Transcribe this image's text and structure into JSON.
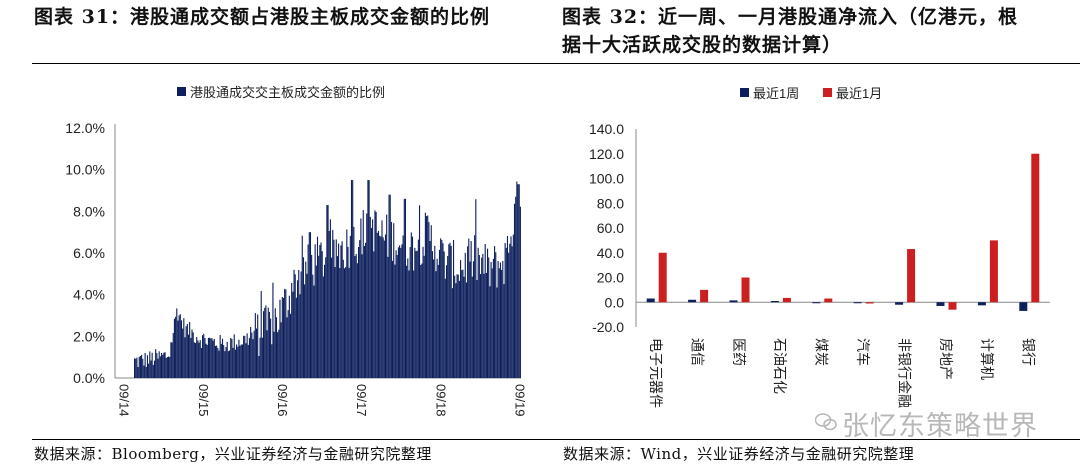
{
  "left_panel": {
    "title": "图表 31：港股通成交额占港股主板成交金额的比例",
    "source": "数据来源：Bloomberg，兴业证券经济与金融研究院整理"
  },
  "right_panel": {
    "title_line1": "图表 32：近一周、一月港股通净流入（亿港元，根",
    "title_line2": "据十大活跃成交股的数据计算）",
    "source": "数据来源：Wind，兴业证券经济与金融研究院整理"
  },
  "watermark": {
    "text": "张忆东策略世界",
    "icon": "wechat-icon"
  },
  "chart_data": [
    {
      "type": "bar",
      "series": [
        {
          "name": "港股通成交交主板成交金额的比例",
          "color": "#0d1f5c"
        }
      ],
      "legend_label": "港股通成交交主板成交金额的比例",
      "x_tick_labels": [
        "09/14",
        "09/15",
        "09/16",
        "09/17",
        "09/18",
        "09/19"
      ],
      "y_tick_labels": [
        "0.0%",
        "2.0%",
        "4.0%",
        "6.0%",
        "8.0%",
        "10.0%",
        "12.0%"
      ],
      "ylim": [
        0,
        12
      ],
      "legend_position": "top-center",
      "control_points": [
        {
          "x": 0.0,
          "y": 0.8
        },
        {
          "x": 0.04,
          "y": 0.9
        },
        {
          "x": 0.09,
          "y": 1.1
        },
        {
          "x": 0.11,
          "y": 3.3
        },
        {
          "x": 0.13,
          "y": 2.4
        },
        {
          "x": 0.17,
          "y": 1.9
        },
        {
          "x": 0.23,
          "y": 1.6
        },
        {
          "x": 0.28,
          "y": 1.8
        },
        {
          "x": 0.34,
          "y": 2.3
        },
        {
          "x": 0.38,
          "y": 3.1
        },
        {
          "x": 0.42,
          "y": 4.8
        },
        {
          "x": 0.47,
          "y": 5.6
        },
        {
          "x": 0.52,
          "y": 6.0
        },
        {
          "x": 0.57,
          "y": 6.5
        },
        {
          "x": 0.61,
          "y": 7.4
        },
        {
          "x": 0.64,
          "y": 6.8
        },
        {
          "x": 0.68,
          "y": 6.6
        },
        {
          "x": 0.72,
          "y": 6.2
        },
        {
          "x": 0.76,
          "y": 6.9
        },
        {
          "x": 0.8,
          "y": 5.7
        },
        {
          "x": 0.84,
          "y": 5.3
        },
        {
          "x": 0.88,
          "y": 5.7
        },
        {
          "x": 0.92,
          "y": 5.2
        },
        {
          "x": 0.96,
          "y": 5.6
        },
        {
          "x": 0.985,
          "y": 7.8
        },
        {
          "x": 1.0,
          "y": 9.1
        }
      ],
      "peaks": [
        {
          "x": 0.565,
          "y": 9.5
        },
        {
          "x": 0.605,
          "y": 9.5
        },
        {
          "x": 0.66,
          "y": 8.8
        },
        {
          "x": 0.7,
          "y": 8.6
        },
        {
          "x": 0.5,
          "y": 8.3
        },
        {
          "x": 0.455,
          "y": 7.0
        },
        {
          "x": 0.995,
          "y": 9.3
        }
      ]
    },
    {
      "type": "bar",
      "categories": [
        "电子元器件",
        "通信",
        "医药",
        "石油石化",
        "煤炭",
        "汽车",
        "非银行金融",
        "房地产",
        "计算机",
        "银行"
      ],
      "series": [
        {
          "name": "最近1周",
          "color": "#0d1f5c",
          "values": [
            3,
            2,
            1.5,
            1,
            0,
            0,
            -2,
            -3,
            -2.5,
            -7
          ]
        },
        {
          "name": "最近1月",
          "color": "#cc1f1f",
          "values": [
            40,
            10,
            20,
            3.5,
            3,
            -1,
            43,
            -6,
            50,
            120
          ]
        }
      ],
      "y_tick_labels": [
        "-20.0",
        "0.0",
        "20.0",
        "40.0",
        "60.0",
        "80.0",
        "100.0",
        "120.0",
        "140.0"
      ],
      "ylim": [
        -20,
        140
      ],
      "legend_position": "top-center"
    }
  ]
}
